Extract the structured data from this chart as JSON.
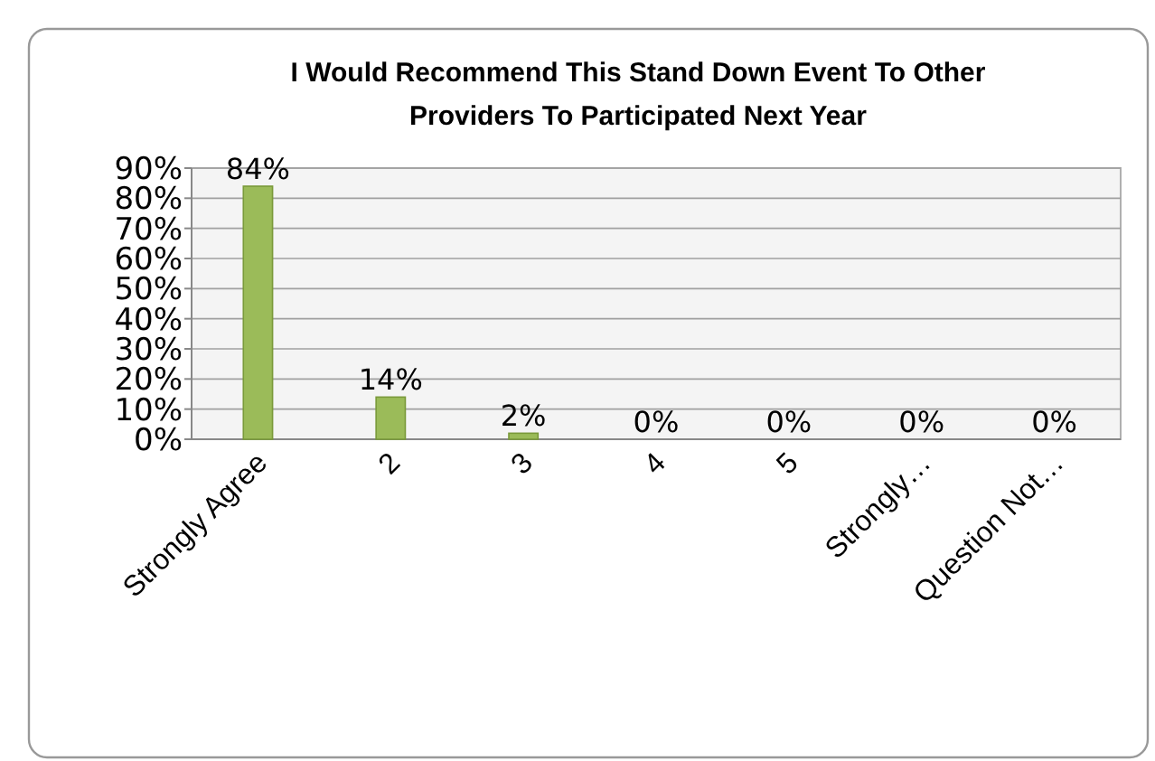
{
  "chart_data": {
    "type": "bar",
    "title": "I Would Recommend This Stand Down Event To Other Providers To Participated Next Year",
    "categories": [
      "Strongly Agree",
      "2",
      "3",
      "4",
      "5",
      "Strongly…",
      "Question Not…"
    ],
    "values": [
      84,
      14,
      2,
      0,
      0,
      0,
      0
    ],
    "value_labels": [
      "84%",
      "14%",
      "2%",
      "0%",
      "0%",
      "0%",
      "0%"
    ],
    "color": "#9bbb59",
    "ylim": [
      0,
      90
    ],
    "yticks": [
      {
        "value": 0,
        "label": "0%"
      },
      {
        "value": 10,
        "label": "10%"
      },
      {
        "value": 20,
        "label": "20%"
      },
      {
        "value": 30,
        "label": "30%"
      },
      {
        "value": 40,
        "label": "40%"
      },
      {
        "value": 50,
        "label": "50%"
      },
      {
        "value": 60,
        "label": "60%"
      },
      {
        "value": 70,
        "label": "70%"
      },
      {
        "value": 80,
        "label": "80%"
      },
      {
        "value": 90,
        "label": "90%"
      }
    ],
    "grid": "y"
  }
}
